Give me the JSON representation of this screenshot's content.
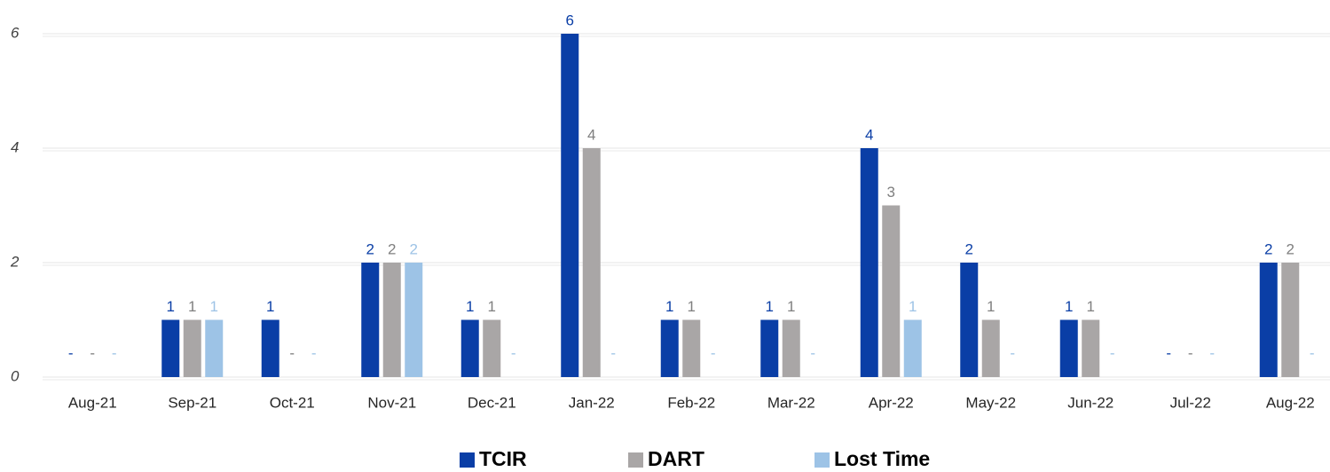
{
  "chart_data": {
    "type": "bar",
    "categories": [
      "Aug-21",
      "Sep-21",
      "Oct-21",
      "Nov-21",
      "Dec-21",
      "Jan-22",
      "Feb-22",
      "Mar-22",
      "Apr-22",
      "May-22",
      "Jun-22",
      "Jul-22",
      "Aug-22"
    ],
    "series": [
      {
        "name": "TCIR",
        "color": "#0a3ea6",
        "label_color": "#0a3ea6",
        "values": [
          0,
          1,
          1,
          2,
          1,
          6,
          1,
          1,
          4,
          2,
          1,
          0,
          2
        ],
        "value_labels": [
          "-",
          "1",
          "1",
          "2",
          "1",
          "6",
          "1",
          "1",
          "4",
          "2",
          "1",
          "-",
          "2"
        ]
      },
      {
        "name": "DART",
        "color": "#a9a6a6",
        "label_color": "#7f7f7f",
        "values": [
          0,
          1,
          0,
          2,
          1,
          4,
          1,
          1,
          3,
          1,
          1,
          0,
          2
        ],
        "value_labels": [
          "-",
          "1",
          "-",
          "2",
          "1",
          "4",
          "1",
          "1",
          "3",
          "1",
          "1",
          "-",
          "2"
        ]
      },
      {
        "name": "Lost Time",
        "color": "#9dc3e6",
        "label_color": "#9dc3e6",
        "values": [
          0,
          1,
          0,
          2,
          0,
          0,
          0,
          0,
          1,
          0,
          0,
          0,
          0
        ],
        "value_labels": [
          "-",
          "1",
          "-",
          "2",
          "-",
          "-",
          "-",
          "-",
          "1",
          "-",
          "-",
          "-",
          "-"
        ]
      }
    ],
    "ylim": [
      0,
      6
    ],
    "yticks": [
      0,
      2,
      4,
      6
    ],
    "grid": true,
    "legend": "bottom"
  }
}
